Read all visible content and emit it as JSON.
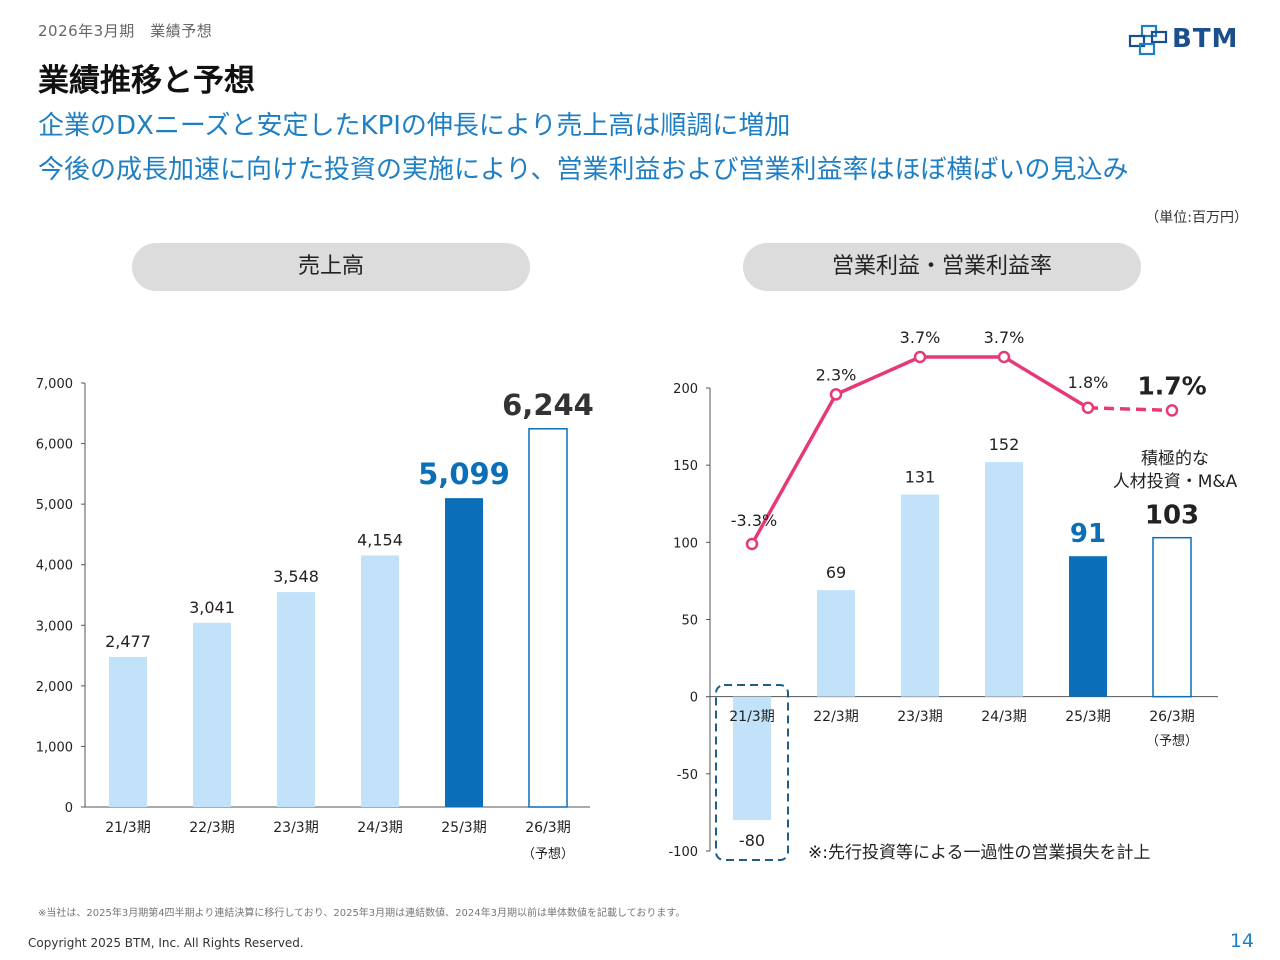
{
  "header": {
    "subtitle": "2026年3月期　業績予想",
    "title": "業績推移と予想",
    "headline_1": "企業のDXニーズと安定したKPIの伸長により売上高は順調に増加",
    "headline_2": "今後の成長加速に向けた投資の実施により、営業利益および営業利益率はほぼ横ばいの見込み",
    "unit": "（単位:百万円）",
    "logo_text": "BTM"
  },
  "colors": {
    "headline": "#1f7fc4",
    "bar_light": "#c2e2fa",
    "bar_dark": "#0a6fb8",
    "forecast_outline": "#0a6fb8",
    "margin_line": "#e6397a",
    "dashed_box": "#1f5e8c"
  },
  "panels": {
    "left_title": "売上高",
    "right_title": "営業利益・営業利益率"
  },
  "chart_data": [
    {
      "type": "bar",
      "title": "売上高",
      "categories": [
        "21/3期",
        "22/3期",
        "23/3期",
        "24/3期",
        "25/3期",
        "26/3期"
      ],
      "category_note": "（予想）",
      "values": [
        2477,
        3041,
        3548,
        4154,
        5099,
        6244
      ],
      "labels": [
        "2,477",
        "3,041",
        "3,548",
        "4,154",
        "5,099",
        "6,244"
      ],
      "yticks": [
        "0",
        "1,000",
        "2,000",
        "3,000",
        "4,000",
        "5,000",
        "6,000",
        "7,000"
      ],
      "ylim": [
        0,
        7000
      ],
      "highlight_index": 4,
      "forecast_index": 5,
      "grid": false
    },
    {
      "type": "bar",
      "title": "営業利益・営業利益率",
      "categories": [
        "21/3期",
        "22/3期",
        "23/3期",
        "24/3期",
        "25/3期",
        "26/3期"
      ],
      "category_note": "（予想）",
      "values": [
        -80,
        69,
        131,
        152,
        91,
        103
      ],
      "labels": [
        "-80",
        "69",
        "131",
        "152",
        "91",
        "103"
      ],
      "yticks": [
        "-100",
        "-50",
        "0",
        "50",
        "100",
        "150",
        "200"
      ],
      "ylim": [
        -100,
        200
      ],
      "highlight_index": 4,
      "forecast_index": 5,
      "margin_rate": {
        "values": [
          -3.3,
          2.3,
          3.7,
          3.7,
          1.8,
          1.7
        ],
        "labels": [
          "-3.3%",
          "2.3%",
          "3.7%",
          "3.7%",
          "1.8%",
          "1.7%"
        ]
      },
      "forecast_note": [
        "積極的な",
        "人材投資・M&A"
      ],
      "loss_note": "※:先行投資等による一過性の営業損失を計上",
      "grid": false
    }
  ],
  "footer": {
    "footnote": "※当社は、2025年3月期第4四半期より連結決算に移行しており、2025年3月期は連結数値、2024年3月期以前は単体数値を記載しております。",
    "copyright": "Copyright 2025 BTM, Inc. All Rights Reserved.",
    "page_number": "14"
  }
}
